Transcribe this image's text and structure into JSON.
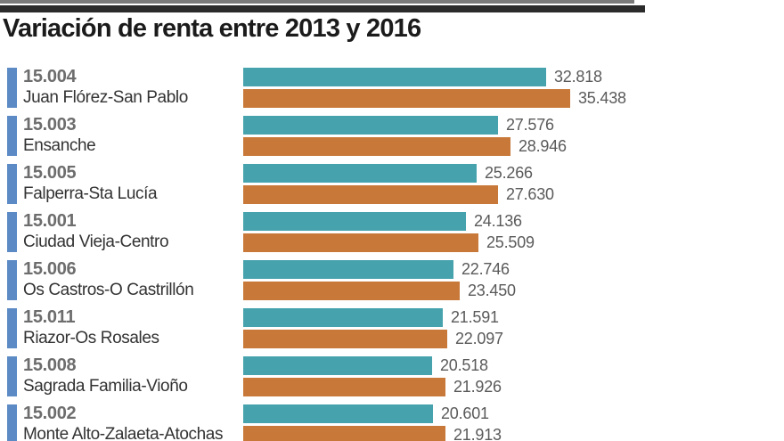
{
  "colors": {
    "bar_2013": "#46a3ae",
    "bar_2016": "#c87939",
    "district_marker": "#5b8ac5",
    "title_text": "#1b1b1b",
    "code_text": "#6d6d6d",
    "name_text": "#333333",
    "value_text": "#5a5a5a",
    "top_rule_thin": "#7a7a7a",
    "top_rule_thick": "#2b2b2b"
  },
  "chart_data": {
    "type": "bar",
    "orientation": "horizontal",
    "title": "Variación de renta entre 2013 y 2016",
    "legend_position": "none",
    "grid": false,
    "xlim": [
      0,
      35438
    ],
    "category_codes": [
      "15.004",
      "15.003",
      "15.005",
      "15.001",
      "15.006",
      "15.011",
      "15.008",
      "15.002"
    ],
    "categories": [
      "Juan Flórez-San Pablo",
      "Ensanche",
      "Falperra-Sta Lucía",
      "Ciudad Vieja-Centro",
      "Os Castros-O Castrillón",
      "Riazor-Os Rosales",
      "Sagrada Familia-Vioño",
      "Monte Alto-Zalaeta-Atochas"
    ],
    "series": [
      {
        "name": "2013",
        "color": "#46a3ae",
        "values": [
          32818,
          27576,
          25266,
          24136,
          22746,
          21591,
          20518,
          20601
        ],
        "display_values": [
          "32.818",
          "27.576",
          "25.266",
          "24.136",
          "22.746",
          "21.591",
          "20.518",
          "20.601"
        ]
      },
      {
        "name": "2016",
        "color": "#c87939",
        "values": [
          35438,
          28946,
          27630,
          25509,
          23450,
          22097,
          21926,
          21913
        ],
        "display_values": [
          "35.438",
          "28.946",
          "27.630",
          "25.509",
          "23.450",
          "22.097",
          "21.926",
          "21.913"
        ]
      }
    ]
  }
}
